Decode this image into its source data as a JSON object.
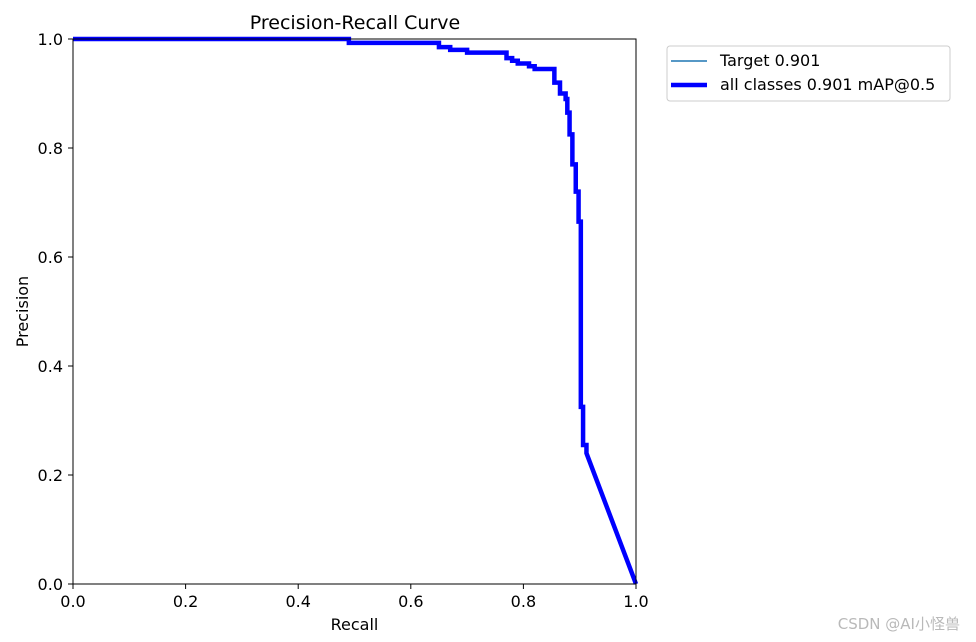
{
  "chart_data": {
    "type": "line",
    "title": "Precision-Recall Curve",
    "xlabel": "Recall",
    "ylabel": "Precision",
    "xlim": [
      0.0,
      1.0
    ],
    "ylim": [
      0.0,
      1.0
    ],
    "x_ticks": [
      "0.0",
      "0.2",
      "0.4",
      "0.6",
      "0.8",
      "1.0"
    ],
    "y_ticks": [
      "0.0",
      "0.2",
      "0.4",
      "0.6",
      "0.8",
      "1.0"
    ],
    "grid": false,
    "legend_position": "outside-top-right",
    "series": [
      {
        "name": "Target 0.901",
        "color": "#1f77b4",
        "points": [
          [
            0.0,
            1.0
          ],
          [
            0.49,
            1.0
          ],
          [
            0.49,
            0.993
          ],
          [
            0.65,
            0.993
          ],
          [
            0.65,
            0.985
          ],
          [
            0.67,
            0.985
          ],
          [
            0.67,
            0.98
          ],
          [
            0.7,
            0.98
          ],
          [
            0.7,
            0.975
          ],
          [
            0.77,
            0.975
          ],
          [
            0.77,
            0.965
          ],
          [
            0.78,
            0.965
          ],
          [
            0.78,
            0.96
          ],
          [
            0.79,
            0.96
          ],
          [
            0.79,
            0.955
          ],
          [
            0.81,
            0.955
          ],
          [
            0.81,
            0.95
          ],
          [
            0.82,
            0.95
          ],
          [
            0.82,
            0.945
          ],
          [
            0.855,
            0.945
          ],
          [
            0.855,
            0.92
          ],
          [
            0.865,
            0.92
          ],
          [
            0.865,
            0.9
          ],
          [
            0.875,
            0.9
          ],
          [
            0.875,
            0.89
          ],
          [
            0.878,
            0.89
          ],
          [
            0.878,
            0.865
          ],
          [
            0.882,
            0.865
          ],
          [
            0.882,
            0.825
          ],
          [
            0.887,
            0.825
          ],
          [
            0.887,
            0.77
          ],
          [
            0.893,
            0.77
          ],
          [
            0.893,
            0.72
          ],
          [
            0.898,
            0.72
          ],
          [
            0.898,
            0.665
          ],
          [
            0.902,
            0.665
          ],
          [
            0.902,
            0.325
          ],
          [
            0.906,
            0.325
          ],
          [
            0.906,
            0.255
          ],
          [
            0.912,
            0.255
          ],
          [
            0.912,
            0.24
          ],
          [
            1.0,
            0.0
          ]
        ]
      },
      {
        "name": "all classes 0.901 mAP@0.5",
        "color": "#0000ff",
        "points": [
          [
            0.0,
            1.0
          ],
          [
            0.49,
            1.0
          ],
          [
            0.49,
            0.993
          ],
          [
            0.65,
            0.993
          ],
          [
            0.65,
            0.985
          ],
          [
            0.67,
            0.985
          ],
          [
            0.67,
            0.98
          ],
          [
            0.7,
            0.98
          ],
          [
            0.7,
            0.975
          ],
          [
            0.77,
            0.975
          ],
          [
            0.77,
            0.965
          ],
          [
            0.78,
            0.965
          ],
          [
            0.78,
            0.96
          ],
          [
            0.79,
            0.96
          ],
          [
            0.79,
            0.955
          ],
          [
            0.81,
            0.955
          ],
          [
            0.81,
            0.95
          ],
          [
            0.82,
            0.95
          ],
          [
            0.82,
            0.945
          ],
          [
            0.855,
            0.945
          ],
          [
            0.855,
            0.92
          ],
          [
            0.865,
            0.92
          ],
          [
            0.865,
            0.9
          ],
          [
            0.875,
            0.9
          ],
          [
            0.875,
            0.89
          ],
          [
            0.878,
            0.89
          ],
          [
            0.878,
            0.865
          ],
          [
            0.882,
            0.865
          ],
          [
            0.882,
            0.825
          ],
          [
            0.887,
            0.825
          ],
          [
            0.887,
            0.77
          ],
          [
            0.893,
            0.77
          ],
          [
            0.893,
            0.72
          ],
          [
            0.898,
            0.72
          ],
          [
            0.898,
            0.665
          ],
          [
            0.902,
            0.665
          ],
          [
            0.902,
            0.325
          ],
          [
            0.906,
            0.325
          ],
          [
            0.906,
            0.255
          ],
          [
            0.912,
            0.255
          ],
          [
            0.912,
            0.24
          ],
          [
            1.0,
            0.0
          ]
        ]
      }
    ]
  },
  "watermark": "CSDN @AI小怪兽"
}
